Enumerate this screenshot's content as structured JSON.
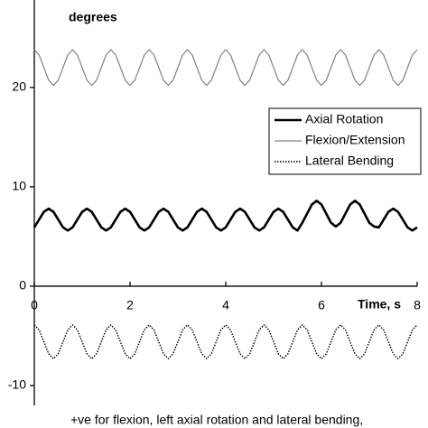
{
  "chart_data": {
    "type": "line",
    "ylabel": "degrees",
    "xlabel": "Time, s",
    "footnote": "+ve for flexion, left axial rotation and lateral bending,",
    "xlim": [
      0,
      8
    ],
    "xticks": [
      0,
      2,
      4,
      6,
      8
    ],
    "ylim": [
      -12,
      28.8
    ],
    "yticks": [
      -10,
      0,
      10,
      20
    ],
    "legend": "right",
    "x": [
      0,
      0.1,
      0.2,
      0.3,
      0.4,
      0.5,
      0.6,
      0.7,
      0.8,
      0.9,
      1,
      1.1,
      1.2,
      1.3,
      1.4,
      1.5,
      1.6,
      1.7,
      1.8,
      1.9,
      2,
      2.1,
      2.2,
      2.3,
      2.4,
      2.5,
      2.6,
      2.7,
      2.8,
      2.9,
      3,
      3.1,
      3.2,
      3.3,
      3.4,
      3.5,
      3.6,
      3.7,
      3.8,
      3.9,
      4,
      4.1,
      4.2,
      4.3,
      4.4,
      4.5,
      4.6,
      4.7,
      4.8,
      4.9,
      5,
      5.1,
      5.2,
      5.3,
      5.4,
      5.5,
      5.6,
      5.7,
      5.8,
      5.9,
      6,
      6.1,
      6.2,
      6.3,
      6.4,
      6.5,
      6.6,
      6.7,
      6.8,
      6.9,
      7,
      7.1,
      7.2,
      7.3,
      7.4,
      7.5,
      7.6,
      7.7,
      7.8,
      7.9,
      8
    ],
    "series": [
      {
        "name": "Axial Rotation",
        "color": "#000000",
        "width": 2.6,
        "dash": "none",
        "values": [
          5.92,
          6.7,
          7.48,
          7.8,
          7.48,
          6.7,
          5.92,
          5.6,
          5.92,
          6.7,
          7.48,
          7.8,
          7.48,
          6.7,
          5.92,
          5.6,
          5.92,
          6.7,
          7.48,
          7.8,
          7.48,
          6.7,
          5.92,
          5.6,
          5.92,
          6.7,
          7.48,
          7.8,
          7.48,
          6.7,
          5.92,
          5.6,
          5.92,
          6.7,
          7.48,
          7.8,
          7.48,
          6.7,
          5.92,
          5.6,
          5.92,
          6.7,
          7.48,
          7.8,
          7.48,
          6.7,
          5.92,
          5.6,
          5.92,
          6.7,
          7.48,
          7.8,
          7.48,
          6.7,
          5.92,
          5.6,
          6.38,
          7.3,
          8.22,
          8.6,
          8.22,
          7.3,
          6.38,
          6.0,
          6.38,
          7.3,
          8.22,
          8.6,
          8.22,
          7.3,
          6.38,
          6.0,
          5.92,
          6.7,
          7.48,
          7.8,
          7.48,
          6.7,
          5.92,
          5.6,
          5.92
        ]
      },
      {
        "name": "Flexion/Extension",
        "color": "#808080",
        "width": 1.2,
        "dash": "none",
        "values": [
          23.8,
          23.27,
          22,
          20.73,
          20.2,
          20.73,
          22,
          23.27,
          23.8,
          23.27,
          22,
          20.73,
          20.2,
          20.73,
          22,
          23.27,
          23.8,
          23.27,
          22,
          20.73,
          20.2,
          20.73,
          22,
          23.27,
          23.8,
          23.27,
          22,
          20.73,
          20.2,
          20.73,
          22,
          23.27,
          23.8,
          23.27,
          22,
          20.73,
          20.2,
          20.73,
          22,
          23.27,
          23.8,
          23.27,
          22,
          20.73,
          20.2,
          20.73,
          22,
          23.27,
          23.8,
          23.27,
          22,
          20.73,
          20.2,
          20.73,
          22,
          23.27,
          23.8,
          23.27,
          22,
          20.73,
          20.2,
          20.73,
          22,
          23.27,
          23.8,
          23.27,
          22,
          20.73,
          20.2,
          20.73,
          22,
          23.27,
          23.8,
          23.27,
          22,
          20.73,
          20.2,
          20.73,
          22,
          23.27,
          23.8
        ]
      },
      {
        "name": "Lateral Bending",
        "color": "#000000",
        "width": 1.4,
        "dash": "1.5 1.5",
        "values": [
          -3.9,
          -4.39,
          -5.6,
          -6.81,
          -7.3,
          -6.81,
          -5.6,
          -4.39,
          -3.9,
          -4.39,
          -5.6,
          -6.81,
          -7.3,
          -6.81,
          -5.6,
          -4.39,
          -3.9,
          -4.39,
          -5.6,
          -6.81,
          -7.3,
          -6.81,
          -5.6,
          -4.39,
          -3.9,
          -4.39,
          -5.6,
          -6.81,
          -7.3,
          -6.81,
          -5.6,
          -4.39,
          -3.9,
          -4.39,
          -5.6,
          -6.81,
          -7.3,
          -6.81,
          -5.6,
          -4.39,
          -3.9,
          -4.39,
          -5.6,
          -6.81,
          -7.3,
          -6.81,
          -5.6,
          -4.39,
          -3.9,
          -4.39,
          -5.6,
          -6.81,
          -7.3,
          -6.81,
          -5.6,
          -4.39,
          -3.9,
          -4.39,
          -5.6,
          -6.81,
          -7.3,
          -6.81,
          -5.6,
          -4.39,
          -3.9,
          -4.39,
          -5.6,
          -6.81,
          -7.3,
          -6.81,
          -5.6,
          -4.39,
          -3.9,
          -4.39,
          -5.6,
          -6.81,
          -7.3,
          -6.81,
          -5.6,
          -4.39,
          -3.9
        ]
      }
    ]
  }
}
